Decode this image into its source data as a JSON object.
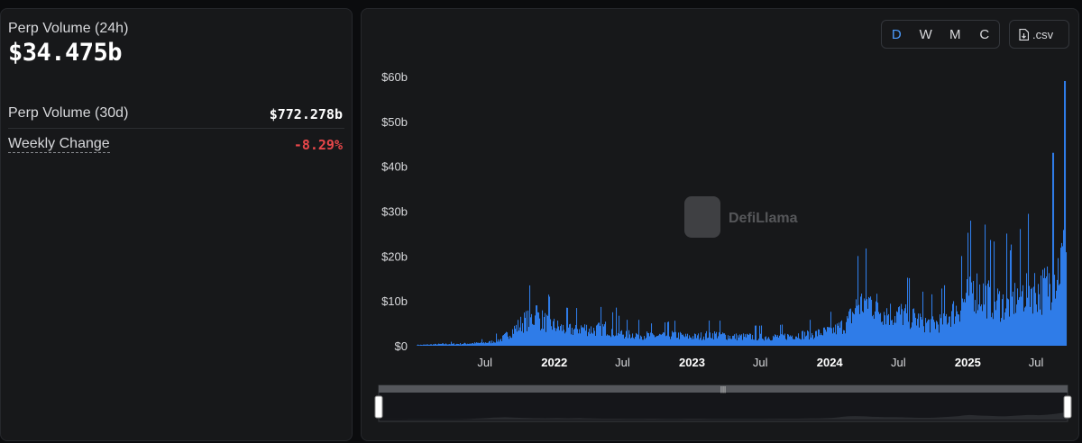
{
  "stats": {
    "perp_24h_label": "Perp Volume (24h)",
    "perp_24h_value": "$34.475b",
    "perp_30d_label": "Perp Volume (30d)",
    "perp_30d_value": "$772.278b",
    "weekly_change_label": "Weekly Change",
    "weekly_change_value": "-8.29%"
  },
  "controls": {
    "periods": [
      "D",
      "W",
      "M",
      "C"
    ],
    "active_period": "D",
    "csv_label": ".csv"
  },
  "watermark": "DefiLlama",
  "colors": {
    "accent": "#4b9cff",
    "series": "#2f7ce8",
    "negative": "#e8474a"
  },
  "chart_data": {
    "type": "bar",
    "title": "",
    "xlabel": "",
    "ylabel": "",
    "ylim": [
      0,
      60
    ],
    "y_unit": "b",
    "y_ticks": [
      "$0",
      "$10b",
      "$20b",
      "$30b",
      "$40b",
      "$50b",
      "$60b"
    ],
    "x_ticks": [
      "Jul",
      "2022",
      "Jul",
      "2023",
      "Jul",
      "2024",
      "Jul",
      "2025",
      "Jul"
    ],
    "x_range": [
      "2021-01",
      "2025-09"
    ],
    "grid": false,
    "series": [
      {
        "name": "",
        "resolution": "monthly (approx. daily level)",
        "x": [
          "2021-01",
          "2021-02",
          "2021-03",
          "2021-04",
          "2021-05",
          "2021-06",
          "2021-07",
          "2021-08",
          "2021-09",
          "2021-10",
          "2021-11",
          "2021-12",
          "2022-01",
          "2022-02",
          "2022-03",
          "2022-04",
          "2022-05",
          "2022-06",
          "2022-07",
          "2022-08",
          "2022-09",
          "2022-10",
          "2022-11",
          "2022-12",
          "2023-01",
          "2023-02",
          "2023-03",
          "2023-04",
          "2023-05",
          "2023-06",
          "2023-07",
          "2023-08",
          "2023-09",
          "2023-10",
          "2023-11",
          "2023-12",
          "2024-01",
          "2024-02",
          "2024-03",
          "2024-04",
          "2024-05",
          "2024-06",
          "2024-07",
          "2024-08",
          "2024-09",
          "2024-10",
          "2024-11",
          "2024-12",
          "2025-01",
          "2025-02",
          "2025-03",
          "2025-04",
          "2025-05",
          "2025-06",
          "2025-07",
          "2025-08",
          "2025-09"
        ],
        "values": [
          0.2,
          0.3,
          0.4,
          0.4,
          0.5,
          0.6,
          0.8,
          1.5,
          3.5,
          5.5,
          6.5,
          5,
          4,
          3.5,
          4,
          3.5,
          4,
          3,
          2.5,
          2.5,
          2.2,
          2.2,
          2.5,
          2,
          2,
          2.5,
          2.5,
          2,
          2,
          2,
          2,
          2,
          2.2,
          2.5,
          2.5,
          3,
          3.5,
          5,
          9,
          10,
          8,
          7,
          7,
          6,
          5,
          5,
          7,
          9,
          13,
          11,
          10,
          9,
          11,
          13,
          12,
          15,
          20
        ],
        "peaks": [
          {
            "x": "2021-11",
            "value": 9
          },
          {
            "x": "2022-06",
            "value": 8.5
          },
          {
            "x": "2024-03",
            "value": 20
          },
          {
            "x": "2024-12",
            "value": 20
          },
          {
            "x": "2025-02",
            "value": 27
          },
          {
            "x": "2025-04",
            "value": 25
          },
          {
            "x": "2025-08",
            "value": 43
          },
          {
            "x": "2025-09",
            "value": 59
          }
        ]
      }
    ]
  }
}
